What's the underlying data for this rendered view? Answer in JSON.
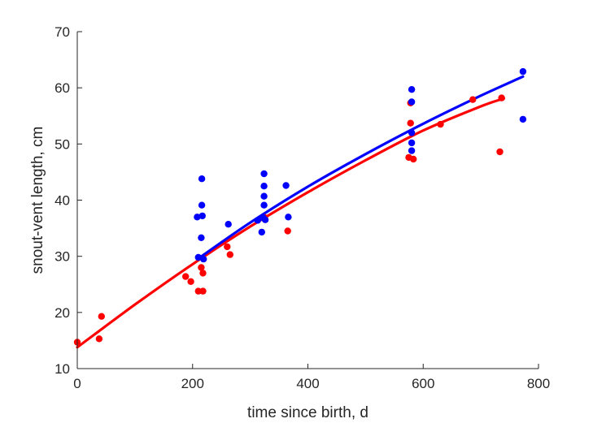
{
  "chart_data": {
    "type": "scatter",
    "xlabel": "time since birth, d",
    "ylabel": "snout-vent length, cm",
    "xlim": [
      0,
      800
    ],
    "ylim": [
      10,
      70
    ],
    "xticks": [
      "0",
      "200",
      "400",
      "600",
      "800"
    ],
    "yticks": [
      "10",
      "20",
      "30",
      "40",
      "50",
      "60",
      "70"
    ],
    "grid": false,
    "series": [
      {
        "color": "#ff0000",
        "points": [
          [
            0,
            14.7
          ],
          [
            38,
            15.3
          ],
          [
            42,
            19.3
          ],
          [
            188,
            26.4
          ],
          [
            197,
            25.5
          ],
          [
            210,
            23.8
          ],
          [
            215,
            28.0
          ],
          [
            218,
            27.0
          ],
          [
            218,
            23.8
          ],
          [
            260,
            31.7
          ],
          [
            265,
            30.3
          ],
          [
            325,
            36.9
          ],
          [
            365,
            34.5
          ],
          [
            575,
            47.6
          ],
          [
            578,
            57.3
          ],
          [
            578,
            53.7
          ],
          [
            583,
            47.3
          ],
          [
            630,
            53.5
          ],
          [
            686,
            57.9
          ],
          [
            733,
            48.6
          ],
          [
            736,
            58.2
          ]
        ],
        "fit": [
          [
            0,
            13.8
          ],
          [
            100,
            21.4
          ],
          [
            200,
            28.6
          ],
          [
            300,
            35.3
          ],
          [
            400,
            41.4
          ],
          [
            500,
            47.1
          ],
          [
            600,
            52.4
          ],
          [
            700,
            56.7
          ],
          [
            740,
            58.1
          ]
        ]
      },
      {
        "color": "#0000ff",
        "points": [
          [
            208,
            37.0
          ],
          [
            210,
            29.8
          ],
          [
            215,
            33.3
          ],
          [
            216,
            43.8
          ],
          [
            216,
            39.1
          ],
          [
            217,
            37.2
          ],
          [
            219,
            29.5
          ],
          [
            262,
            35.7
          ],
          [
            313,
            36.4
          ],
          [
            320,
            34.3
          ],
          [
            322,
            36.9
          ],
          [
            324,
            44.7
          ],
          [
            324,
            42.5
          ],
          [
            324,
            40.7
          ],
          [
            324,
            39.1
          ],
          [
            326,
            36.5
          ],
          [
            362,
            42.6
          ],
          [
            366,
            37.0
          ],
          [
            580,
            59.7
          ],
          [
            580,
            57.5
          ],
          [
            580,
            52.0
          ],
          [
            580,
            50.2
          ],
          [
            580,
            48.8
          ],
          [
            773,
            62.9
          ],
          [
            773,
            54.4
          ]
        ],
        "fit": [
          [
            210,
            29.6
          ],
          [
            300,
            36.0
          ],
          [
            400,
            42.4
          ],
          [
            500,
            48.2
          ],
          [
            600,
            53.6
          ],
          [
            700,
            58.6
          ],
          [
            773,
            62.0
          ]
        ]
      }
    ]
  }
}
